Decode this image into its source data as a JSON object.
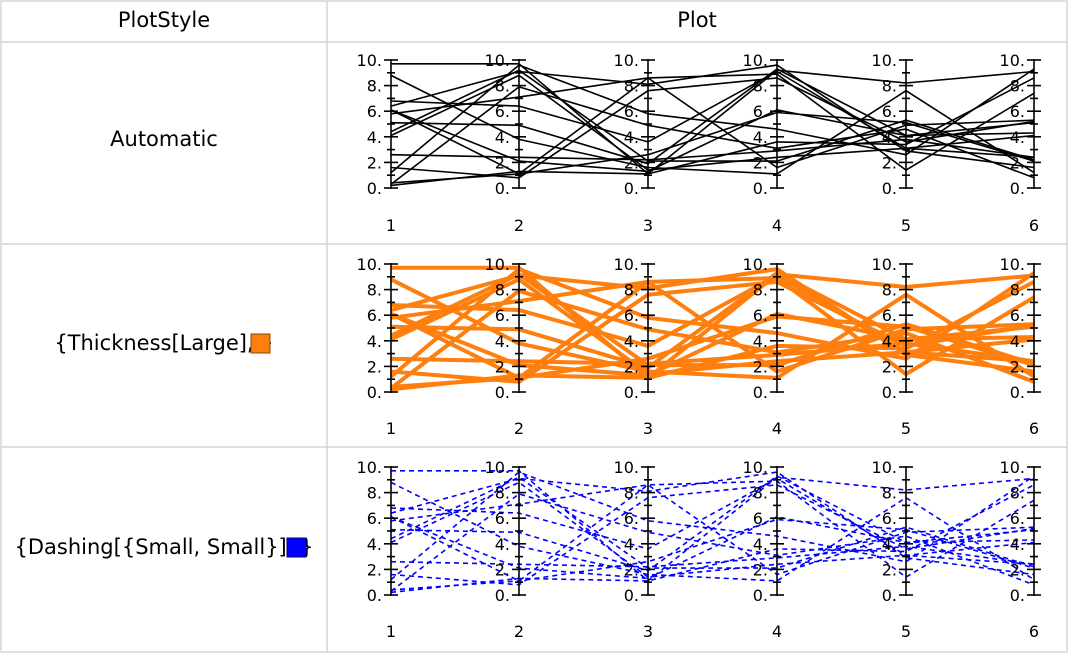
{
  "table": {
    "header_style": "PlotStyle",
    "header_plot": "Plot"
  },
  "rows": [
    {
      "style_label": "Automatic",
      "swatch_color": null
    },
    {
      "style_label_prefix": "{Thickness[Large], ",
      "style_label_suffix": "}",
      "swatch_color": "#FF7F0E"
    },
    {
      "style_label_prefix": "{Dashing[{Small, Small}], ",
      "style_label_suffix": "}",
      "swatch_color": "#0000FF"
    }
  ],
  "chart_data": [
    {
      "type": "parallel-coordinates",
      "style": {
        "color": "#000000",
        "dashed": false,
        "thick": false
      },
      "axes": [
        "1",
        "2",
        "3",
        "4",
        "5",
        "6"
      ],
      "y_ticks": [
        "0.",
        "2.",
        "4.",
        "6.",
        "8.",
        "10."
      ],
      "ylim": [
        0,
        10
      ],
      "series": [
        [
          9.7,
          9.7,
          1.1,
          9.2,
          8.2,
          9.1
        ],
        [
          4.1,
          8.8,
          1.4,
          2.4,
          3.1,
          2.4
        ],
        [
          2.6,
          2.4,
          2.2,
          2.9,
          3.8,
          2.4
        ],
        [
          6.4,
          9.1,
          8.1,
          9.6,
          2.9,
          1.6
        ],
        [
          0.4,
          1.1,
          2.6,
          5.9,
          5.1,
          2.1
        ],
        [
          5.8,
          7.1,
          8.6,
          1.6,
          4.9,
          5.3
        ],
        [
          0.2,
          1.3,
          1.1,
          3.6,
          3.4,
          8.6
        ],
        [
          1.6,
          0.8,
          7.6,
          8.6,
          3.6,
          5.2
        ],
        [
          8.8,
          3.8,
          1.6,
          1.1,
          7.6,
          1.2
        ],
        [
          6.8,
          6.4,
          3.6,
          9.1,
          3.1,
          4.1
        ],
        [
          4.4,
          9.2,
          2.1,
          2.1,
          5.3,
          2.2
        ],
        [
          6.1,
          1.1,
          8.6,
          8.9,
          1.4,
          7.4
        ],
        [
          0.3,
          7.9,
          4.9,
          3.1,
          4.6,
          0.8
        ],
        [
          5.1,
          4.9,
          1.9,
          9.3,
          4.1,
          4.3
        ],
        [
          1.2,
          9.6,
          5.8,
          4.6,
          2.6,
          9.3
        ],
        [
          6.1,
          2.1,
          1.3,
          6.1,
          4.1,
          5.1
        ]
      ]
    },
    {
      "type": "parallel-coordinates",
      "style": {
        "color": "#FF7F0E",
        "dashed": false,
        "thick": true
      },
      "axes": [
        "1",
        "2",
        "3",
        "4",
        "5",
        "6"
      ],
      "y_ticks": [
        "0.",
        "2.",
        "4.",
        "6.",
        "8.",
        "10."
      ],
      "ylim": [
        0,
        10
      ],
      "series": [
        [
          9.7,
          9.7,
          1.1,
          9.2,
          8.2,
          9.1
        ],
        [
          4.1,
          8.8,
          1.4,
          2.4,
          3.1,
          2.4
        ],
        [
          2.6,
          2.4,
          2.2,
          2.9,
          3.8,
          2.4
        ],
        [
          6.4,
          9.1,
          8.1,
          9.6,
          2.9,
          1.6
        ],
        [
          0.4,
          1.1,
          2.6,
          5.9,
          5.1,
          2.1
        ],
        [
          5.8,
          7.1,
          8.6,
          1.6,
          4.9,
          5.3
        ],
        [
          0.2,
          1.3,
          1.1,
          3.6,
          3.4,
          8.6
        ],
        [
          1.6,
          0.8,
          7.6,
          8.6,
          3.6,
          5.2
        ],
        [
          8.8,
          3.8,
          1.6,
          1.1,
          7.6,
          1.2
        ],
        [
          6.8,
          6.4,
          3.6,
          9.1,
          3.1,
          4.1
        ],
        [
          4.4,
          9.2,
          2.1,
          2.1,
          5.3,
          2.2
        ],
        [
          6.1,
          1.1,
          8.6,
          8.9,
          1.4,
          7.4
        ],
        [
          0.3,
          7.9,
          4.9,
          3.1,
          4.6,
          0.8
        ],
        [
          5.1,
          4.9,
          1.9,
          9.3,
          4.1,
          4.3
        ],
        [
          1.2,
          9.6,
          5.8,
          4.6,
          2.6,
          9.3
        ],
        [
          6.1,
          2.1,
          1.3,
          6.1,
          4.1,
          5.1
        ]
      ]
    },
    {
      "type": "parallel-coordinates",
      "style": {
        "color": "#0000FF",
        "dashed": true,
        "thick": false
      },
      "axes": [
        "1",
        "2",
        "3",
        "4",
        "5",
        "6"
      ],
      "y_ticks": [
        "0.",
        "2.",
        "4.",
        "6.",
        "8.",
        "10."
      ],
      "ylim": [
        0,
        10
      ],
      "series": [
        [
          9.7,
          9.7,
          1.1,
          9.2,
          8.2,
          9.1
        ],
        [
          4.1,
          8.8,
          1.4,
          2.4,
          3.1,
          2.4
        ],
        [
          2.6,
          2.4,
          2.2,
          2.9,
          3.8,
          2.4
        ],
        [
          6.4,
          9.1,
          8.1,
          9.6,
          2.9,
          1.6
        ],
        [
          0.4,
          1.1,
          2.6,
          5.9,
          5.1,
          2.1
        ],
        [
          5.8,
          7.1,
          8.6,
          1.6,
          4.9,
          5.3
        ],
        [
          0.2,
          1.3,
          1.1,
          3.6,
          3.4,
          8.6
        ],
        [
          1.6,
          0.8,
          7.6,
          8.6,
          3.6,
          5.2
        ],
        [
          8.8,
          3.8,
          1.6,
          1.1,
          7.6,
          1.2
        ],
        [
          6.8,
          6.4,
          3.6,
          9.1,
          3.1,
          4.1
        ],
        [
          4.4,
          9.2,
          2.1,
          2.1,
          5.3,
          2.2
        ],
        [
          6.1,
          1.1,
          8.6,
          8.9,
          1.4,
          7.4
        ],
        [
          0.3,
          7.9,
          4.9,
          3.1,
          4.6,
          0.8
        ],
        [
          5.1,
          4.9,
          1.9,
          9.3,
          4.1,
          4.3
        ],
        [
          1.2,
          9.6,
          5.8,
          4.6,
          2.6,
          9.3
        ],
        [
          6.1,
          2.1,
          1.3,
          6.1,
          4.1,
          5.1
        ]
      ]
    }
  ]
}
